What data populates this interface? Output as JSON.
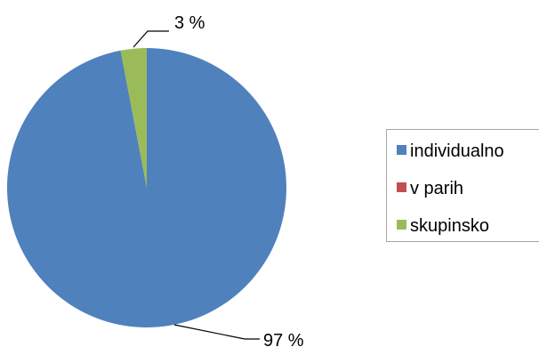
{
  "chart_data": {
    "type": "pie",
    "categories": [
      "individualno",
      "v parih",
      "skupinsko"
    ],
    "values": [
      97,
      0,
      3
    ],
    "data_labels": [
      "97 %",
      "",
      "3 %"
    ],
    "colors": [
      "#4f81bd",
      "#c0504d",
      "#9bbb59"
    ],
    "legend": {
      "position": "right",
      "entries": [
        "individualno",
        "v parih",
        "skupinsko"
      ]
    }
  }
}
